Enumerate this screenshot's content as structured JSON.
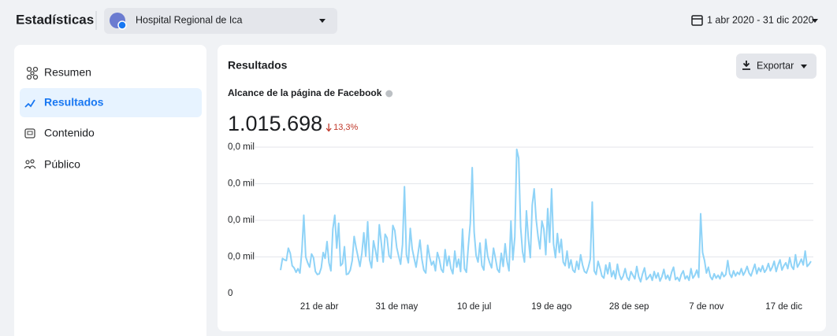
{
  "header": {
    "title": "Estadísticas",
    "page_name": "Hospital Regional de Ica",
    "date_range": "1 abr 2020 - 31 dic 2020"
  },
  "sidebar": {
    "items": [
      "Resumen",
      "Resultados",
      "Contenido",
      "Público"
    ]
  },
  "card": {
    "title": "Resultados",
    "export": "Exportar"
  },
  "chart_data": {
    "type": "line",
    "title": "Alcance de la página de Facebook",
    "total": "1.015.698",
    "change": "13,3%",
    "color": "#8fd3f7",
    "xlim": [
      "2020-04-01",
      "2020-12-31"
    ],
    "xticks": [
      {
        "value": "2020-04-21",
        "label": "21 de abr"
      },
      {
        "value": "2020-05-31",
        "label": "31 de may"
      },
      {
        "value": "2020-07-10",
        "label": "10 de jul"
      },
      {
        "value": "2020-08-19",
        "label": "19 de ago"
      },
      {
        "value": "2020-09-28",
        "label": "28 de sep"
      },
      {
        "value": "2020-11-07",
        "label": "7 de nov"
      },
      {
        "value": "2020-12-17",
        "label": "17 de dic"
      }
    ],
    "ylim": [
      0,
      20000
    ],
    "yticks": [
      0,
      {
        "value": 5000,
        "label": "0,0 mil"
      },
      {
        "value": 10000,
        "label": "0,0 mil"
      },
      {
        "value": 15000,
        "label": "0,0 mil"
      },
      {
        "value": 20000,
        "label": "0,0 mil"
      }
    ],
    "grid": true,
    "x": [
      "2020-04-01",
      "2020-04-02",
      "2020-04-03",
      "2020-04-04",
      "2020-04-05",
      "2020-04-06",
      "2020-04-07",
      "2020-04-08",
      "2020-04-09",
      "2020-04-10",
      "2020-04-11",
      "2020-04-12",
      "2020-04-13",
      "2020-04-14",
      "2020-04-15",
      "2020-04-16",
      "2020-04-17",
      "2020-04-18",
      "2020-04-19",
      "2020-04-20",
      "2020-04-21",
      "2020-04-22",
      "2020-04-23",
      "2020-04-24",
      "2020-04-25",
      "2020-04-26",
      "2020-04-27",
      "2020-04-28",
      "2020-04-29",
      "2020-04-30",
      "2020-05-01",
      "2020-05-02",
      "2020-05-03",
      "2020-05-04",
      "2020-05-05",
      "2020-05-06",
      "2020-05-07",
      "2020-05-08",
      "2020-05-09",
      "2020-05-10",
      "2020-05-11",
      "2020-05-12",
      "2020-05-13",
      "2020-05-14",
      "2020-05-15",
      "2020-05-16",
      "2020-05-17",
      "2020-05-18",
      "2020-05-19",
      "2020-05-20",
      "2020-05-21",
      "2020-05-22",
      "2020-05-23",
      "2020-05-24",
      "2020-05-25",
      "2020-05-26",
      "2020-05-27",
      "2020-05-28",
      "2020-05-29",
      "2020-05-30",
      "2020-05-31",
      "2020-06-01",
      "2020-06-02",
      "2020-06-03",
      "2020-06-04",
      "2020-06-05",
      "2020-06-06",
      "2020-06-07",
      "2020-06-08",
      "2020-06-09",
      "2020-06-10",
      "2020-06-11",
      "2020-06-12",
      "2020-06-13",
      "2020-06-14",
      "2020-06-15",
      "2020-06-16",
      "2020-06-17",
      "2020-06-18",
      "2020-06-19",
      "2020-06-20",
      "2020-06-21",
      "2020-06-22",
      "2020-06-23",
      "2020-06-24",
      "2020-06-25",
      "2020-06-26",
      "2020-06-27",
      "2020-06-28",
      "2020-06-29",
      "2020-06-30",
      "2020-07-01",
      "2020-07-02",
      "2020-07-03",
      "2020-07-04",
      "2020-07-05",
      "2020-07-06",
      "2020-07-07",
      "2020-07-08",
      "2020-07-09",
      "2020-07-10",
      "2020-07-11",
      "2020-07-12",
      "2020-07-13",
      "2020-07-14",
      "2020-07-15",
      "2020-07-16",
      "2020-07-17",
      "2020-07-18",
      "2020-07-19",
      "2020-07-20",
      "2020-07-21",
      "2020-07-22",
      "2020-07-23",
      "2020-07-24",
      "2020-07-25",
      "2020-07-26",
      "2020-07-27",
      "2020-07-28",
      "2020-07-29",
      "2020-07-30",
      "2020-07-31",
      "2020-08-01",
      "2020-08-02",
      "2020-08-03",
      "2020-08-04",
      "2020-08-05",
      "2020-08-06",
      "2020-08-07",
      "2020-08-08",
      "2020-08-09",
      "2020-08-10",
      "2020-08-11",
      "2020-08-12",
      "2020-08-13",
      "2020-08-14",
      "2020-08-15",
      "2020-08-16",
      "2020-08-17",
      "2020-08-18",
      "2020-08-19",
      "2020-08-20",
      "2020-08-21",
      "2020-08-22",
      "2020-08-23",
      "2020-08-24",
      "2020-08-25",
      "2020-08-26",
      "2020-08-27",
      "2020-08-28",
      "2020-08-29",
      "2020-08-30",
      "2020-08-31",
      "2020-09-01",
      "2020-09-02",
      "2020-09-03",
      "2020-09-04",
      "2020-09-05",
      "2020-09-06",
      "2020-09-07",
      "2020-09-08",
      "2020-09-09",
      "2020-09-10",
      "2020-09-11",
      "2020-09-12",
      "2020-09-13",
      "2020-09-14",
      "2020-09-15",
      "2020-09-16",
      "2020-09-17",
      "2020-09-18",
      "2020-09-19",
      "2020-09-20",
      "2020-09-21",
      "2020-09-22",
      "2020-09-23",
      "2020-09-24",
      "2020-09-25",
      "2020-09-26",
      "2020-09-27",
      "2020-09-28",
      "2020-09-29",
      "2020-09-30",
      "2020-10-01",
      "2020-10-02",
      "2020-10-03",
      "2020-10-04",
      "2020-10-05",
      "2020-10-06",
      "2020-10-07",
      "2020-10-08",
      "2020-10-09",
      "2020-10-10",
      "2020-10-11",
      "2020-10-12",
      "2020-10-13",
      "2020-10-14",
      "2020-10-15",
      "2020-10-16",
      "2020-10-17",
      "2020-10-18",
      "2020-10-19",
      "2020-10-20",
      "2020-10-21",
      "2020-10-22",
      "2020-10-23",
      "2020-10-24",
      "2020-10-25",
      "2020-10-26",
      "2020-10-27",
      "2020-10-28",
      "2020-10-29",
      "2020-10-30",
      "2020-10-31",
      "2020-11-01",
      "2020-11-02",
      "2020-11-03",
      "2020-11-04",
      "2020-11-05",
      "2020-11-06",
      "2020-11-07",
      "2020-11-08",
      "2020-11-09",
      "2020-11-10",
      "2020-11-11",
      "2020-11-12",
      "2020-11-13",
      "2020-11-14",
      "2020-11-15",
      "2020-11-16",
      "2020-11-17",
      "2020-11-18",
      "2020-11-19",
      "2020-11-20",
      "2020-11-21",
      "2020-11-22",
      "2020-11-23",
      "2020-11-24",
      "2020-11-25",
      "2020-11-26",
      "2020-11-27",
      "2020-11-28",
      "2020-11-29",
      "2020-11-30",
      "2020-12-01",
      "2020-12-02",
      "2020-12-03",
      "2020-12-04",
      "2020-12-05",
      "2020-12-06",
      "2020-12-07",
      "2020-12-08",
      "2020-12-09",
      "2020-12-10",
      "2020-12-11",
      "2020-12-12",
      "2020-12-13",
      "2020-12-14",
      "2020-12-15",
      "2020-12-16",
      "2020-12-17",
      "2020-12-18",
      "2020-12-19",
      "2020-12-20",
      "2020-12-21",
      "2020-12-22",
      "2020-12-23",
      "2020-12-24",
      "2020-12-25",
      "2020-12-26",
      "2020-12-27",
      "2020-12-28",
      "2020-12-29",
      "2020-12-30",
      "2020-12-31"
    ],
    "values": [
      3200,
      4800,
      4600,
      4500,
      6200,
      5500,
      3800,
      3500,
      2900,
      3400,
      2800,
      5800,
      10700,
      5000,
      4200,
      3600,
      5400,
      4900,
      3000,
      2600,
      2700,
      3500,
      5600,
      4800,
      7100,
      4200,
      3100,
      8800,
      10700,
      6200,
      9600,
      3800,
      4100,
      6400,
      2600,
      2700,
      3200,
      4500,
      7800,
      6300,
      5000,
      3700,
      5500,
      8300,
      5100,
      9800,
      4600,
      3500,
      7200,
      5900,
      4400,
      9400,
      7000,
      4300,
      8100,
      7600,
      5200,
      4800,
      9300,
      8600,
      6300,
      5100,
      4000,
      6700,
      14600,
      5300,
      4200,
      8900,
      6100,
      4800,
      3600,
      5400,
      7300,
      4700,
      3200,
      2800,
      6600,
      5000,
      3900,
      4400,
      3100,
      5600,
      4700,
      3300,
      2900,
      6000,
      3800,
      5100,
      3400,
      2700,
      5800,
      3600,
      4700,
      3000,
      8800,
      3400,
      2900,
      6500,
      9600,
      17200,
      8400,
      5200,
      4300,
      6900,
      3800,
      3200,
      7400,
      5100,
      4200,
      3500,
      6200,
      4800,
      3300,
      2900,
      5500,
      3700,
      6800,
      4400,
      3100,
      9900,
      4600,
      7700,
      19700,
      18500,
      9100,
      5700,
      4300,
      11300,
      7500,
      4900,
      12100,
      14300,
      10200,
      7800,
      6100,
      9900,
      8800,
      5300,
      11600,
      7000,
      14300,
      6800,
      4900,
      8200,
      5600,
      7400,
      4300,
      3800,
      5800,
      3500,
      4600,
      3200,
      2900,
      4400,
      3300,
      5300,
      3900,
      3000,
      2800,
      3600,
      4700,
      12500,
      3100,
      2600,
      4400,
      3500,
      2400,
      2100,
      3900,
      2700,
      4200,
      2300,
      3100,
      2000,
      4000,
      2600,
      1900,
      2400,
      3400,
      2200,
      1800,
      3000,
      2500,
      2000,
      3700,
      2300,
      1600,
      2700,
      3500,
      1900,
      2200,
      2600,
      1800,
      3000,
      2100,
      2800,
      1700,
      2300,
      3300,
      2000,
      2500,
      1800,
      2900,
      3600,
      1900,
      2200,
      1700,
      2600,
      3100,
      2000,
      2400,
      1800,
      3400,
      2100,
      2500,
      3200,
      2200,
      10900,
      5600,
      4500,
      2800,
      3600,
      2300,
      1900,
      2700,
      2100,
      2500,
      2000,
      2900,
      2300,
      2600,
      4500,
      2700,
      2200,
      3100,
      2400,
      2900,
      2600,
      3400,
      2500,
      3000,
      3700,
      2800,
      2400,
      3200,
      4000,
      2700,
      3500,
      3000,
      3800,
      2900,
      3300,
      4100,
      3100,
      3600,
      4400,
      3000,
      3900,
      4600,
      3200,
      3800,
      4200,
      3400,
      4900,
      3700,
      3300,
      5300,
      3600,
      4100,
      4700,
      3900,
      5800,
      3700,
      4000,
      4400
    ]
  }
}
